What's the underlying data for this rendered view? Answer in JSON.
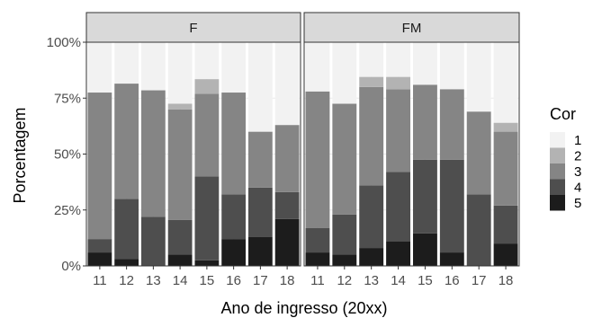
{
  "chart_data": {
    "type": "bar",
    "stacked": true,
    "xlabel": "Ano de ingresso (20xx)",
    "ylabel": "Porcentagem",
    "ylim": [
      0,
      1
    ],
    "yticks": [
      "0%",
      "25%",
      "50%",
      "75%",
      "100%"
    ],
    "grid": true,
    "legend": {
      "title": "Cor",
      "position": "right",
      "items": [
        {
          "key": "1",
          "color": "#f2f2f2"
        },
        {
          "key": "2",
          "color": "#b3b3b3"
        },
        {
          "key": "3",
          "color": "#858585"
        },
        {
          "key": "4",
          "color": "#4e4e4e"
        },
        {
          "key": "5",
          "color": "#1c1c1c"
        }
      ]
    },
    "categories": [
      "11",
      "12",
      "13",
      "14",
      "15",
      "16",
      "17",
      "18"
    ],
    "panels": [
      {
        "name": "F",
        "series": [
          {
            "name": "5",
            "values": [
              0.06,
              0.03,
              0.0,
              0.05,
              0.025,
              0.12,
              0.13,
              0.21
            ]
          },
          {
            "name": "4",
            "values": [
              0.06,
              0.27,
              0.22,
              0.155,
              0.375,
              0.2,
              0.22,
              0.12
            ]
          },
          {
            "name": "3",
            "values": [
              0.655,
              0.515,
              0.565,
              0.495,
              0.37,
              0.455,
              0.25,
              0.3
            ]
          },
          {
            "name": "2",
            "values": [
              0.0,
              0.0,
              0.0,
              0.025,
              0.065,
              0.0,
              0.0,
              0.0
            ]
          },
          {
            "name": "1",
            "values": [
              0.225,
              0.185,
              0.215,
              0.275,
              0.165,
              0.225,
              0.4,
              0.37
            ]
          }
        ]
      },
      {
        "name": "FM",
        "series": [
          {
            "name": "5",
            "values": [
              0.06,
              0.05,
              0.08,
              0.11,
              0.145,
              0.06,
              0.0,
              0.1
            ]
          },
          {
            "name": "4",
            "values": [
              0.11,
              0.18,
              0.28,
              0.31,
              0.33,
              0.415,
              0.32,
              0.17
            ]
          },
          {
            "name": "3",
            "values": [
              0.61,
              0.495,
              0.44,
              0.37,
              0.335,
              0.315,
              0.37,
              0.33
            ]
          },
          {
            "name": "2",
            "values": [
              0.0,
              0.0,
              0.045,
              0.055,
              0.0,
              0.0,
              0.0,
              0.04
            ]
          },
          {
            "name": "1",
            "values": [
              0.22,
              0.275,
              0.155,
              0.155,
              0.19,
              0.21,
              0.31,
              0.36
            ]
          }
        ]
      }
    ]
  }
}
